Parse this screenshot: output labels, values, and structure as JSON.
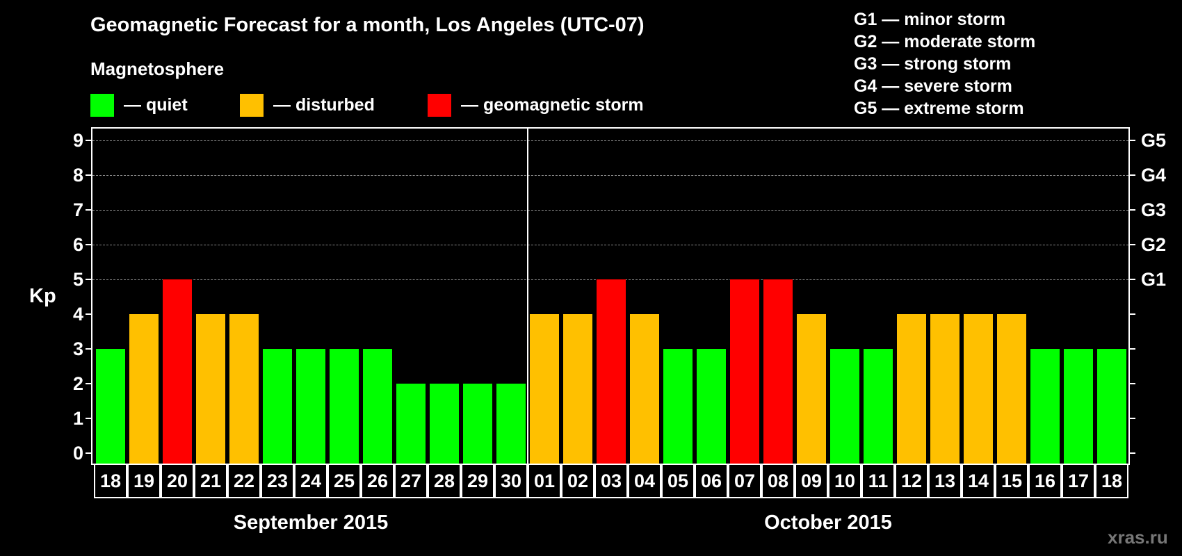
{
  "title": "Geomagnetic Forecast for a month, Los Angeles (UTC-07)",
  "subtitle": "Magnetosphere",
  "legend": [
    {
      "label": "— quiet",
      "color": "#00ff00"
    },
    {
      "label": "— disturbed",
      "color": "#ffc000"
    },
    {
      "label": "— geomagnetic storm",
      "color": "#ff0000"
    }
  ],
  "g_legend": [
    "G1 — minor storm",
    "G2 — moderate storm",
    "G3 — strong storm",
    "G4 — severe storm",
    "G5 — extreme storm"
  ],
  "y_axis_label": "Kp",
  "y_ticks": [
    "0",
    "1",
    "2",
    "3",
    "4",
    "5",
    "6",
    "7",
    "8",
    "9"
  ],
  "right_ticks": [
    {
      "kp": 5,
      "label": "G1"
    },
    {
      "kp": 6,
      "label": "G2"
    },
    {
      "kp": 7,
      "label": "G3"
    },
    {
      "kp": 8,
      "label": "G4"
    },
    {
      "kp": 9,
      "label": "G5"
    }
  ],
  "months": [
    {
      "label": "September 2015",
      "start": 0,
      "count": 13
    },
    {
      "label": "October 2015",
      "start": 13,
      "count": 18
    }
  ],
  "watermark": "xras.ru",
  "colors": {
    "quiet": "#00ff00",
    "disturbed": "#ffc000",
    "storm": "#ff0000",
    "grid": "#888888"
  },
  "chart_data": {
    "type": "bar",
    "title": "Geomagnetic Forecast for a month, Los Angeles (UTC-07)",
    "subtitle": "Magnetosphere",
    "xlabel": "September 2015 / October 2015",
    "ylabel": "Kp",
    "ylim": [
      0,
      9
    ],
    "grid": true,
    "secondary_y_labels": {
      "5": "G1",
      "6": "G2",
      "7": "G3",
      "8": "G4",
      "9": "G5"
    },
    "categories": [
      "18",
      "19",
      "20",
      "21",
      "22",
      "23",
      "24",
      "25",
      "26",
      "27",
      "28",
      "29",
      "30",
      "01",
      "02",
      "03",
      "04",
      "05",
      "06",
      "07",
      "08",
      "09",
      "10",
      "11",
      "12",
      "13",
      "14",
      "15",
      "16",
      "17",
      "18"
    ],
    "values": [
      3,
      4,
      5,
      4,
      4,
      3,
      3,
      3,
      3,
      2,
      2,
      2,
      2,
      4,
      4,
      5,
      4,
      3,
      3,
      5,
      5,
      4,
      3,
      3,
      4,
      4,
      4,
      4,
      3,
      3,
      3
    ],
    "status": [
      "quiet",
      "disturbed",
      "storm",
      "disturbed",
      "disturbed",
      "quiet",
      "quiet",
      "quiet",
      "quiet",
      "quiet",
      "quiet",
      "quiet",
      "quiet",
      "disturbed",
      "disturbed",
      "storm",
      "disturbed",
      "quiet",
      "quiet",
      "storm",
      "storm",
      "disturbed",
      "quiet",
      "quiet",
      "disturbed",
      "disturbed",
      "disturbed",
      "disturbed",
      "quiet",
      "quiet",
      "quiet"
    ],
    "legend": [
      "quiet",
      "disturbed",
      "geomagnetic storm"
    ]
  }
}
